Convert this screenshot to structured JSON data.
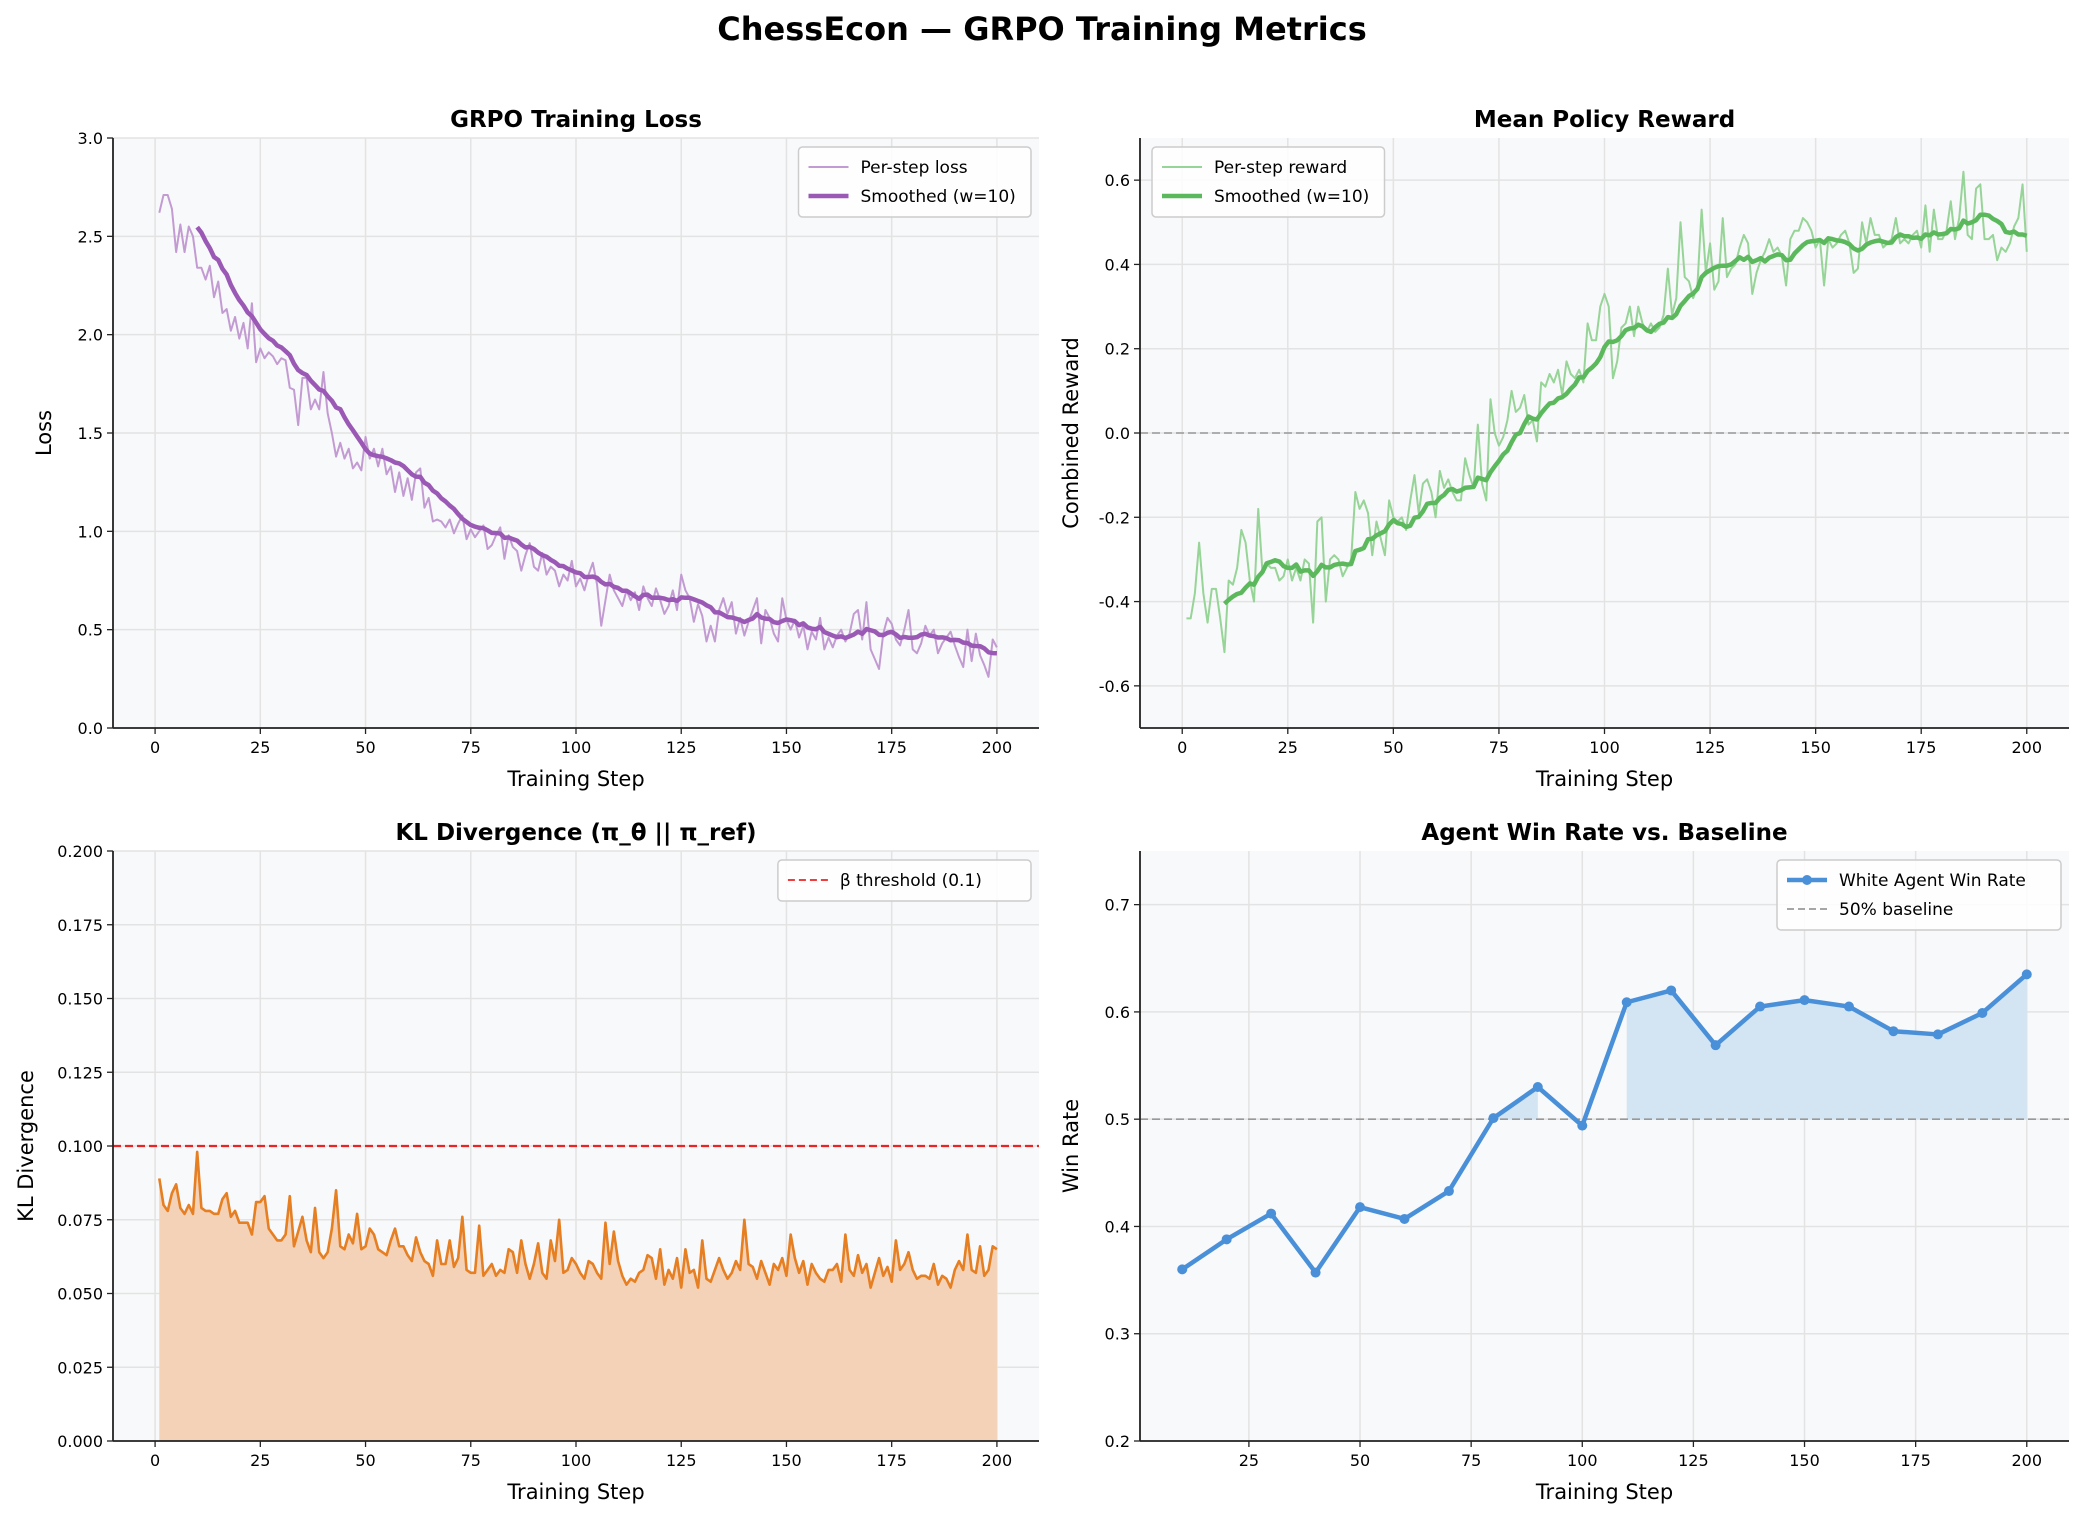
{
  "suptitle": "ChessEcon — GRPO Training Metrics",
  "chart_data": [
    {
      "type": "line",
      "title": "GRPO Training Loss",
      "xlabel": "Training Step",
      "ylabel": "Loss",
      "xlim": [
        -10,
        210
      ],
      "ylim": [
        0,
        3
      ],
      "xticks": [
        0,
        25,
        50,
        75,
        100,
        125,
        150,
        175,
        200
      ],
      "yticks": [
        "0.0",
        "0.5",
        "1.0",
        "1.5",
        "2.0",
        "2.5",
        "3.0"
      ],
      "grid": true,
      "legend": "top-right",
      "series": [
        {
          "name": "Per-step loss",
          "color": "#c39bd3",
          "style": "thin",
          "x_start": 1,
          "values": [
            2.62,
            2.71,
            2.71,
            2.64,
            2.42,
            2.56,
            2.42,
            2.55,
            2.5,
            2.34,
            2.34,
            2.28,
            2.35,
            2.19,
            2.27,
            2.11,
            2.13,
            2.02,
            2.09,
            1.98,
            2.06,
            1.93,
            2.16,
            1.86,
            1.93,
            1.88,
            1.91,
            1.89,
            1.85,
            1.88,
            1.87,
            1.73,
            1.72,
            1.54,
            1.78,
            1.78,
            1.62,
            1.67,
            1.62,
            1.81,
            1.6,
            1.5,
            1.38,
            1.45,
            1.37,
            1.42,
            1.32,
            1.35,
            1.31,
            1.48,
            1.37,
            1.42,
            1.33,
            1.42,
            1.29,
            1.33,
            1.2,
            1.3,
            1.18,
            1.27,
            1.16,
            1.3,
            1.32,
            1.12,
            1.17,
            1.05,
            1.06,
            1.05,
            1.02,
            1.06,
            0.99,
            1.04,
            1.08,
            0.96,
            1.01,
            0.97,
            1.0,
            1.03,
            0.91,
            0.93,
            0.98,
            1.02,
            0.86,
            0.98,
            0.92,
            0.9,
            0.8,
            0.88,
            0.94,
            0.82,
            0.8,
            0.89,
            0.78,
            0.82,
            0.8,
            0.72,
            0.78,
            0.75,
            0.85,
            0.72,
            0.76,
            0.7,
            0.78,
            0.84,
            0.73,
            0.52,
            0.65,
            0.78,
            0.7,
            0.66,
            0.62,
            0.7,
            0.65,
            0.69,
            0.6,
            0.72,
            0.66,
            0.62,
            0.71,
            0.65,
            0.58,
            0.62,
            0.7,
            0.6,
            0.78,
            0.7,
            0.66,
            0.54,
            0.63,
            0.57,
            0.44,
            0.52,
            0.44,
            0.6,
            0.66,
            0.58,
            0.64,
            0.48,
            0.56,
            0.47,
            0.54,
            0.6,
            0.66,
            0.43,
            0.6,
            0.56,
            0.48,
            0.44,
            0.66,
            0.55,
            0.5,
            0.55,
            0.46,
            0.52,
            0.4,
            0.49,
            0.45,
            0.56,
            0.4,
            0.46,
            0.41,
            0.47,
            0.5,
            0.44,
            0.48,
            0.58,
            0.6,
            0.45,
            0.64,
            0.4,
            0.35,
            0.3,
            0.48,
            0.56,
            0.53,
            0.45,
            0.42,
            0.5,
            0.6,
            0.4,
            0.38,
            0.43,
            0.52,
            0.47,
            0.5,
            0.38,
            0.43,
            0.46,
            0.49,
            0.42,
            0.36,
            0.31,
            0.5,
            0.34,
            0.48,
            0.37,
            0.32,
            0.26,
            0.45,
            0.41
          ]
        },
        {
          "name": "Smoothed (w=10)",
          "color": "#9b59b6",
          "style": "thick",
          "smooth_of": 0,
          "window": 10
        }
      ]
    },
    {
      "type": "line",
      "title": "Mean Policy Reward",
      "xlabel": "Training Step",
      "ylabel": "Combined Reward",
      "xlim": [
        -10,
        210
      ],
      "ylim": [
        -0.7,
        0.7
      ],
      "xticks": [
        0,
        25,
        50,
        75,
        100,
        125,
        150,
        175,
        200
      ],
      "yticks": [
        "-0.6",
        "-0.4",
        "-0.2",
        "0.0",
        "0.2",
        "0.4",
        "0.6"
      ],
      "grid": true,
      "legend": "top-left",
      "hlines": [
        {
          "y": 0,
          "color": "#999999",
          "style": "dashed"
        }
      ],
      "series": [
        {
          "name": "Per-step reward",
          "color": "#97d497",
          "style": "thin",
          "x_start": 1,
          "values": [
            -0.44,
            -0.44,
            -0.38,
            -0.26,
            -0.38,
            -0.45,
            -0.37,
            -0.37,
            -0.44,
            -0.52,
            -0.35,
            -0.36,
            -0.32,
            -0.23,
            -0.26,
            -0.35,
            -0.4,
            -0.18,
            -0.33,
            -0.31,
            -0.32,
            -0.32,
            -0.35,
            -0.34,
            -0.3,
            -0.35,
            -0.32,
            -0.35,
            -0.3,
            -0.31,
            -0.45,
            -0.21,
            -0.2,
            -0.4,
            -0.3,
            -0.29,
            -0.3,
            -0.34,
            -0.32,
            -0.3,
            -0.14,
            -0.18,
            -0.16,
            -0.19,
            -0.29,
            -0.21,
            -0.25,
            -0.29,
            -0.16,
            -0.2,
            -0.21,
            -0.2,
            -0.23,
            -0.16,
            -0.1,
            -0.19,
            -0.12,
            -0.11,
            -0.14,
            -0.2,
            -0.09,
            -0.13,
            -0.11,
            -0.14,
            -0.16,
            -0.16,
            -0.06,
            -0.1,
            -0.13,
            0.02,
            -0.12,
            -0.16,
            0.08,
            0.0,
            -0.03,
            -0.01,
            0.03,
            0.1,
            0.05,
            0.06,
            0.09,
            0.02,
            0.03,
            -0.02,
            0.12,
            0.11,
            0.14,
            0.12,
            0.15,
            0.09,
            0.17,
            0.14,
            0.13,
            0.15,
            0.12,
            0.26,
            0.22,
            0.22,
            0.3,
            0.33,
            0.3,
            0.13,
            0.17,
            0.25,
            0.26,
            0.3,
            0.23,
            0.3,
            0.26,
            0.24,
            0.26,
            0.24,
            0.25,
            0.28,
            0.39,
            0.28,
            0.32,
            0.5,
            0.37,
            0.36,
            0.32,
            0.35,
            0.53,
            0.38,
            0.45,
            0.34,
            0.36,
            0.51,
            0.37,
            0.39,
            0.4,
            0.44,
            0.47,
            0.45,
            0.33,
            0.38,
            0.41,
            0.43,
            0.46,
            0.43,
            0.44,
            0.42,
            0.35,
            0.46,
            0.48,
            0.48,
            0.51,
            0.5,
            0.48,
            0.44,
            0.46,
            0.35,
            0.46,
            0.44,
            0.45,
            0.47,
            0.48,
            0.45,
            0.38,
            0.39,
            0.5,
            0.45,
            0.51,
            0.47,
            0.47,
            0.44,
            0.45,
            0.46,
            0.51,
            0.45,
            0.46,
            0.45,
            0.47,
            0.48,
            0.44,
            0.54,
            0.43,
            0.53,
            0.46,
            0.46,
            0.48,
            0.55,
            0.46,
            0.51,
            0.62,
            0.47,
            0.46,
            0.58,
            0.59,
            0.46,
            0.46,
            0.47,
            0.41,
            0.44,
            0.43,
            0.45,
            0.49,
            0.51,
            0.59,
            0.43
          ]
        },
        {
          "name": "Smoothed (w=10)",
          "color": "#5cb85c",
          "style": "thick",
          "smooth_of": 0,
          "window": 10
        }
      ]
    },
    {
      "type": "area",
      "title": "KL Divergence (π_θ || π_ref)",
      "xlabel": "Training Step",
      "ylabel": "KL Divergence",
      "xlim": [
        -10,
        210
      ],
      "ylim": [
        0,
        0.2
      ],
      "xticks": [
        0,
        25,
        50,
        75,
        100,
        125,
        150,
        175,
        200
      ],
      "yticks": [
        "0.000",
        "0.025",
        "0.050",
        "0.075",
        "0.100",
        "0.125",
        "0.150",
        "0.175",
        "0.200"
      ],
      "grid": true,
      "legend": "top-right",
      "hlines": [
        {
          "y": 0.1,
          "color": "#ee2222",
          "style": "dashed",
          "name": "β threshold (0.1)"
        }
      ],
      "series": [
        {
          "color": "#e67e22",
          "fill": "#f3d2b7",
          "style": "medium",
          "x_start": 1,
          "values": [
            0.089,
            0.08,
            0.078,
            0.084,
            0.087,
            0.079,
            0.077,
            0.08,
            0.077,
            0.098,
            0.079,
            0.078,
            0.078,
            0.077,
            0.077,
            0.082,
            0.084,
            0.076,
            0.078,
            0.074,
            0.074,
            0.074,
            0.07,
            0.081,
            0.081,
            0.083,
            0.072,
            0.07,
            0.068,
            0.068,
            0.07,
            0.083,
            0.066,
            0.071,
            0.076,
            0.068,
            0.064,
            0.079,
            0.064,
            0.062,
            0.064,
            0.072,
            0.085,
            0.066,
            0.065,
            0.07,
            0.067,
            0.077,
            0.065,
            0.066,
            0.072,
            0.07,
            0.065,
            0.064,
            0.063,
            0.068,
            0.072,
            0.066,
            0.066,
            0.063,
            0.061,
            0.069,
            0.064,
            0.061,
            0.06,
            0.056,
            0.068,
            0.06,
            0.06,
            0.068,
            0.059,
            0.062,
            0.076,
            0.058,
            0.057,
            0.057,
            0.073,
            0.056,
            0.058,
            0.06,
            0.056,
            0.058,
            0.057,
            0.065,
            0.064,
            0.057,
            0.068,
            0.06,
            0.055,
            0.06,
            0.067,
            0.057,
            0.055,
            0.068,
            0.061,
            0.075,
            0.057,
            0.058,
            0.062,
            0.06,
            0.057,
            0.055,
            0.061,
            0.06,
            0.057,
            0.055,
            0.074,
            0.06,
            0.071,
            0.061,
            0.056,
            0.053,
            0.055,
            0.054,
            0.057,
            0.058,
            0.063,
            0.062,
            0.055,
            0.065,
            0.053,
            0.058,
            0.055,
            0.062,
            0.052,
            0.065,
            0.057,
            0.058,
            0.052,
            0.068,
            0.055,
            0.054,
            0.058,
            0.062,
            0.058,
            0.055,
            0.057,
            0.061,
            0.058,
            0.075,
            0.06,
            0.059,
            0.055,
            0.061,
            0.057,
            0.053,
            0.06,
            0.058,
            0.062,
            0.056,
            0.07,
            0.062,
            0.057,
            0.061,
            0.053,
            0.06,
            0.057,
            0.055,
            0.054,
            0.058,
            0.058,
            0.06,
            0.054,
            0.07,
            0.058,
            0.056,
            0.063,
            0.057,
            0.06,
            0.052,
            0.057,
            0.062,
            0.056,
            0.059,
            0.054,
            0.068,
            0.058,
            0.06,
            0.064,
            0.058,
            0.055,
            0.056,
            0.056,
            0.055,
            0.06,
            0.053,
            0.056,
            0.055,
            0.052,
            0.058,
            0.061,
            0.058,
            0.07,
            0.058,
            0.057,
            0.066,
            0.056,
            0.058,
            0.066,
            0.065
          ]
        }
      ]
    },
    {
      "type": "line",
      "title": "Agent Win Rate vs. Baseline",
      "xlabel": "Training Step",
      "ylabel": "Win Rate",
      "xlim": [
        0.5,
        209.5
      ],
      "ylim": [
        0.2,
        0.75
      ],
      "xticks": [
        25,
        50,
        75,
        100,
        125,
        150,
        175,
        200
      ],
      "yticks": [
        "0.2",
        "0.3",
        "0.4",
        "0.5",
        "0.6",
        "0.7"
      ],
      "grid": true,
      "legend": "top-right",
      "hlines": [
        {
          "y": 0.5,
          "color": "#999999",
          "style": "dashed",
          "name": "50% baseline"
        }
      ],
      "series": [
        {
          "name": "White Agent Win Rate",
          "color": "#4a90d9",
          "fill": "#d3e4f3",
          "fill_above": 0.5,
          "style": "marker",
          "x": [
            10,
            20,
            30,
            40,
            50,
            60,
            70,
            80,
            90,
            100,
            110,
            120,
            130,
            140,
            150,
            160,
            170,
            180,
            190,
            200
          ],
          "values": [
            0.36,
            0.388,
            0.412,
            0.357,
            0.418,
            0.407,
            0.433,
            0.501,
            0.53,
            0.494,
            0.609,
            0.62,
            0.569,
            0.605,
            0.611,
            0.605,
            0.582,
            0.579,
            0.599,
            0.635
          ]
        }
      ]
    }
  ]
}
